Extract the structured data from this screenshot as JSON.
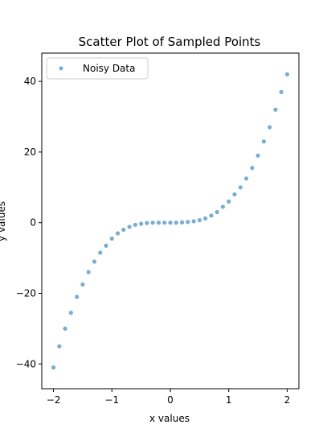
{
  "chart_data": {
    "type": "scatter",
    "title": "Scatter Plot of Sampled Points",
    "xlabel": "x values",
    "ylabel": "y values",
    "xlim": [
      -2.2,
      2.2
    ],
    "ylim": [
      -47,
      48
    ],
    "x_ticks": [
      -2,
      -1,
      0,
      1,
      2
    ],
    "x_tick_labels": [
      "−2",
      "−1",
      "0",
      "1",
      "2"
    ],
    "y_ticks": [
      -40,
      -20,
      0,
      20,
      40
    ],
    "y_tick_labels": [
      "−40",
      "−20",
      "0",
      "20",
      "40"
    ],
    "grid": false,
    "legend": {
      "position": "upper-left",
      "entries": [
        "Noisy Data"
      ]
    },
    "series": [
      {
        "name": "Noisy Data",
        "color": "#1f77b4",
        "x": [
          -2.0,
          -1.9,
          -1.8,
          -1.7,
          -1.6,
          -1.5,
          -1.4,
          -1.3,
          -1.2,
          -1.1,
          -1.0,
          -0.9,
          -0.8,
          -0.7,
          -0.6,
          -0.5,
          -0.4,
          -0.3,
          -0.2,
          -0.1,
          0.0,
          0.1,
          0.2,
          0.3,
          0.4,
          0.5,
          0.6,
          0.7,
          0.8,
          0.9,
          1.0,
          1.1,
          1.2,
          1.3,
          1.4,
          1.5,
          1.6,
          1.7,
          1.8,
          1.9,
          2.0
        ],
        "y": [
          -41.0,
          -35.0,
          -30.0,
          -25.5,
          -21.0,
          -17.5,
          -14.0,
          -11.0,
          -8.5,
          -6.5,
          -4.5,
          -3.0,
          -2.0,
          -1.2,
          -0.6,
          -0.3,
          -0.1,
          0.0,
          0.0,
          0.0,
          0.0,
          0.0,
          0.1,
          0.2,
          0.4,
          0.7,
          1.2,
          2.0,
          3.0,
          4.5,
          6.0,
          8.0,
          10.0,
          12.5,
          15.5,
          19.0,
          23.0,
          27.0,
          32.0,
          37.0,
          42.0
        ]
      }
    ]
  }
}
